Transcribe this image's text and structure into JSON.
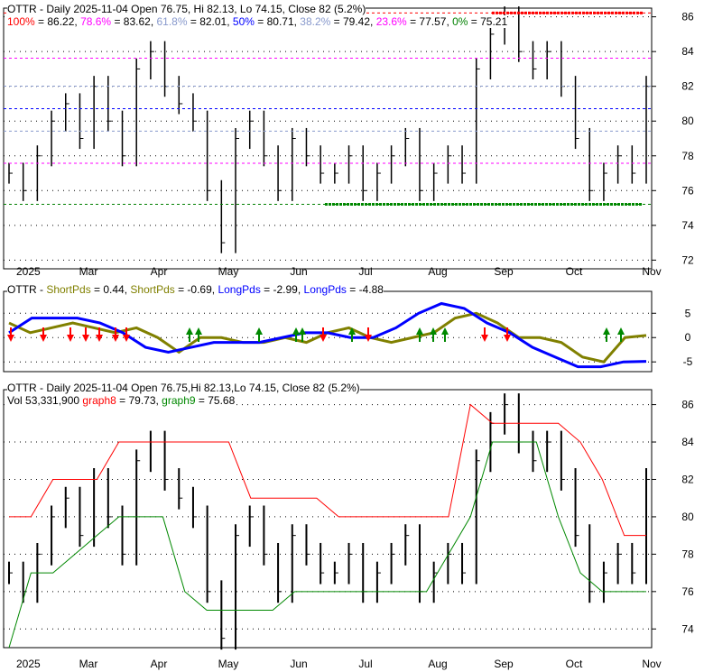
{
  "colors": {
    "red": "#ff0000",
    "magenta": "#ff00ff",
    "grey": "#8899cc",
    "blue": "#0000ff",
    "green": "#008000",
    "olive": "#808000"
  },
  "top_panel": {
    "title": "OTTR - Daily 2025-11-04 Open 76.75, Hi 82.13, Lo 74.15, Close 82 (5.2%)",
    "fib": [
      {
        "label": "100%",
        "value": "86.22",
        "color": "#ff0000"
      },
      {
        "label": "78.6%",
        "value": "83.62",
        "color": "#ff00ff"
      },
      {
        "label": "61.8%",
        "value": "82.01",
        "color": "#8899cc"
      },
      {
        "label": "50%",
        "value": "80.71",
        "color": "#0000ff"
      },
      {
        "label": "38.2%",
        "value": "79.42",
        "color": "#8899cc"
      },
      {
        "label": "23.6%",
        "value": "77.57",
        "color": "#ff00ff"
      },
      {
        "label": "0%",
        "value": "75.21",
        "color": "#008000"
      }
    ]
  },
  "mid_panel": {
    "title_prefix": "OTTR - ",
    "legend": [
      {
        "label": "ShortPds",
        "value": " = 0.44, ",
        "color": "#808000"
      },
      {
        "label": "ShortPds",
        "value": " = -0.69, ",
        "color": "#808000"
      },
      {
        "label": "LongPds",
        "value": " = -2.99, ",
        "color": "#0000ff"
      },
      {
        "label": "LongPds",
        "value": " = -4.88",
        "color": "#0000ff"
      }
    ]
  },
  "bottom_panel": {
    "title": "OTTR - Daily 2025-11-04 Open 76.75,Hi 82.13,Lo 74.15, Close 82 (5.2%)",
    "vol": "Vol 53,331,900 ",
    "graph8_label": "graph8",
    "graph8_value": " = 79.73, ",
    "graph9_label": "graph9",
    "graph9_value": " = 75.68"
  },
  "chart_data": [
    {
      "type": "bar",
      "title": "OTTR - Daily 2025-11-04",
      "x_ticks": [
        "2025",
        "Mar",
        "Apr",
        "May",
        "Jun",
        "Jul",
        "Aug",
        "Sep",
        "Oct",
        "Nov"
      ],
      "y_ticks": [
        72,
        74,
        76,
        78,
        80,
        82,
        84,
        86
      ],
      "ylim": [
        71.5,
        86.5
      ],
      "close_weekly": [
        77,
        76,
        78,
        80,
        81,
        79,
        82,
        80,
        78,
        83,
        84,
        82,
        81,
        80,
        76,
        73,
        79,
        80,
        78,
        76,
        79,
        78,
        77,
        77,
        78,
        76,
        77,
        78,
        79,
        76,
        77,
        78,
        77,
        83,
        85,
        86,
        84,
        83,
        84,
        82,
        79,
        76,
        77,
        78,
        77,
        82
      ]
    },
    {
      "type": "line",
      "y_ticks": [
        5,
        0,
        -5
      ],
      "ylim": [
        -7,
        9.5
      ],
      "series": [
        {
          "name": "ShortPds",
          "values": [
            3,
            1,
            2,
            3,
            2,
            1,
            2,
            0,
            -3,
            0,
            0,
            -1,
            -1,
            0,
            -1,
            1,
            2,
            0,
            -1,
            0,
            1,
            4,
            5,
            3,
            0,
            0,
            -1,
            -4,
            -5,
            0,
            0.44
          ]
        },
        {
          "name": "LongPds",
          "values": [
            1,
            4,
            4,
            4,
            3,
            1,
            -2,
            -3,
            -2,
            -1,
            -1,
            -1,
            0,
            1,
            1,
            0,
            0,
            2,
            5,
            7,
            6,
            3,
            1,
            -2,
            -4,
            -6,
            -6,
            -5,
            -4.88
          ]
        }
      ]
    },
    {
      "type": "bar",
      "y_ticks": [
        74,
        76,
        78,
        80,
        82,
        84,
        86
      ],
      "ylim": [
        73,
        86.8
      ]
    }
  ]
}
